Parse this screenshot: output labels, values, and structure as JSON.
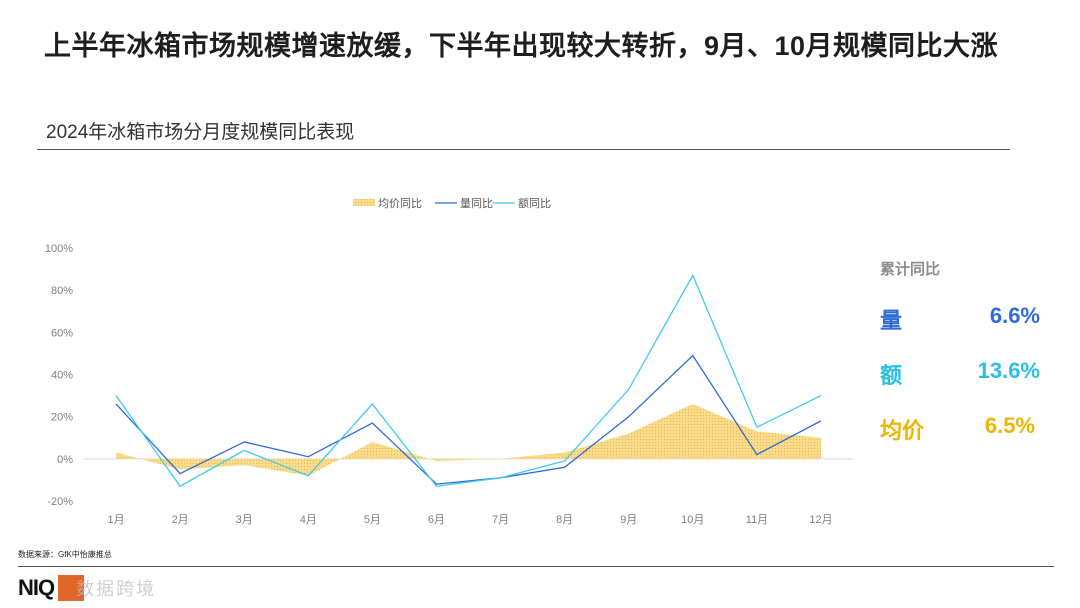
{
  "header": {
    "title": "上半年冰箱市场规模增速放缓，下半年出现较大转折，9月、10月规模同比大涨",
    "subtitle": "2024年冰箱市场分月度规模同比表现"
  },
  "footer": {
    "source": "数据来源：GfK中怡康推总",
    "logo_text": "NIQ",
    "watermark": "数据跨境"
  },
  "cumulative": {
    "title": "累计同比",
    "items": [
      {
        "label": "量",
        "value": "6.6%",
        "color": "#2f6ad9"
      },
      {
        "label": "额",
        "value": "13.6%",
        "color": "#29c0e6"
      },
      {
        "label": "均价",
        "value": "6.5%",
        "color": "#f0b400"
      }
    ]
  },
  "chart_data": {
    "type": "line",
    "categories": [
      "1月",
      "2月",
      "3月",
      "4月",
      "5月",
      "6月",
      "7月",
      "8月",
      "9月",
      "10月",
      "11月",
      "12月"
    ],
    "ylim": [
      -20,
      100
    ],
    "yticks": [
      -20,
      0,
      20,
      40,
      60,
      80,
      100
    ],
    "ytick_labels": [
      "-20%",
      "0%",
      "20%",
      "40%",
      "60%",
      "80%",
      "100%"
    ],
    "legend_position": "top",
    "series": [
      {
        "name": "均价同比",
        "kind": "area",
        "color": "#f7d67f",
        "values": [
          3,
          -5,
          -3,
          -8,
          8,
          -1,
          0,
          3,
          12,
          26,
          13,
          10
        ]
      },
      {
        "name": "量同比",
        "kind": "line",
        "color": "#2f6ad9",
        "values": [
          26,
          -7,
          8,
          1,
          17,
          -12,
          -9,
          -4,
          20,
          49,
          2,
          18
        ]
      },
      {
        "name": "额同比",
        "kind": "line",
        "color": "#3fcbec",
        "values": [
          30,
          -13,
          4,
          -8,
          26,
          -13,
          -9,
          -1,
          33,
          87,
          15,
          30
        ]
      }
    ]
  }
}
